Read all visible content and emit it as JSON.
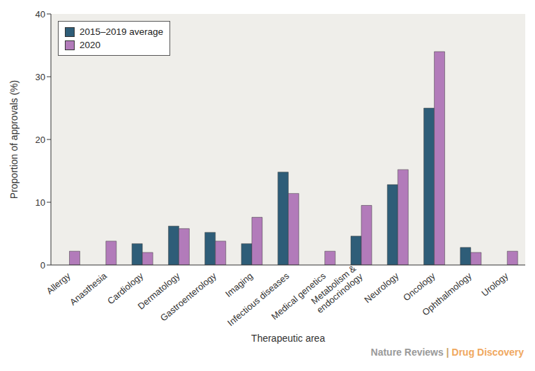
{
  "chart_data": {
    "type": "bar",
    "x_label": "Therapeutic area",
    "y_label": "Proportion of approvals (%)",
    "annotations": [
      "Nature Reviews | Drug Discovery"
    ],
    "categories": [
      "Allergy",
      "Anasthesia",
      "Cardiology",
      "Dermatology",
      "Gastroenterology",
      "Imaging",
      "Infectious diseases",
      "Medical genetics",
      "Metabolism & endocrinology",
      "Neurology",
      "Oncology",
      "Ophthalmology",
      "Urology"
    ],
    "series": [
      {
        "name": "2015–2019 average",
        "color": "#2e5d78",
        "values": [
          0,
          0,
          3.4,
          6.2,
          5.2,
          3.4,
          14.8,
          0,
          4.6,
          12.8,
          25,
          2.8,
          0
        ]
      },
      {
        "name": "2020",
        "color": "#b27bba",
        "values": [
          2.2,
          3.8,
          2.0,
          5.8,
          3.8,
          7.6,
          11.4,
          2.2,
          9.5,
          15.2,
          34,
          2.0,
          2.2
        ]
      }
    ],
    "ylim": [
      0,
      40
    ],
    "yticks": [
      0,
      10,
      20,
      30,
      40
    ],
    "grid": false,
    "legend": "upper left"
  }
}
